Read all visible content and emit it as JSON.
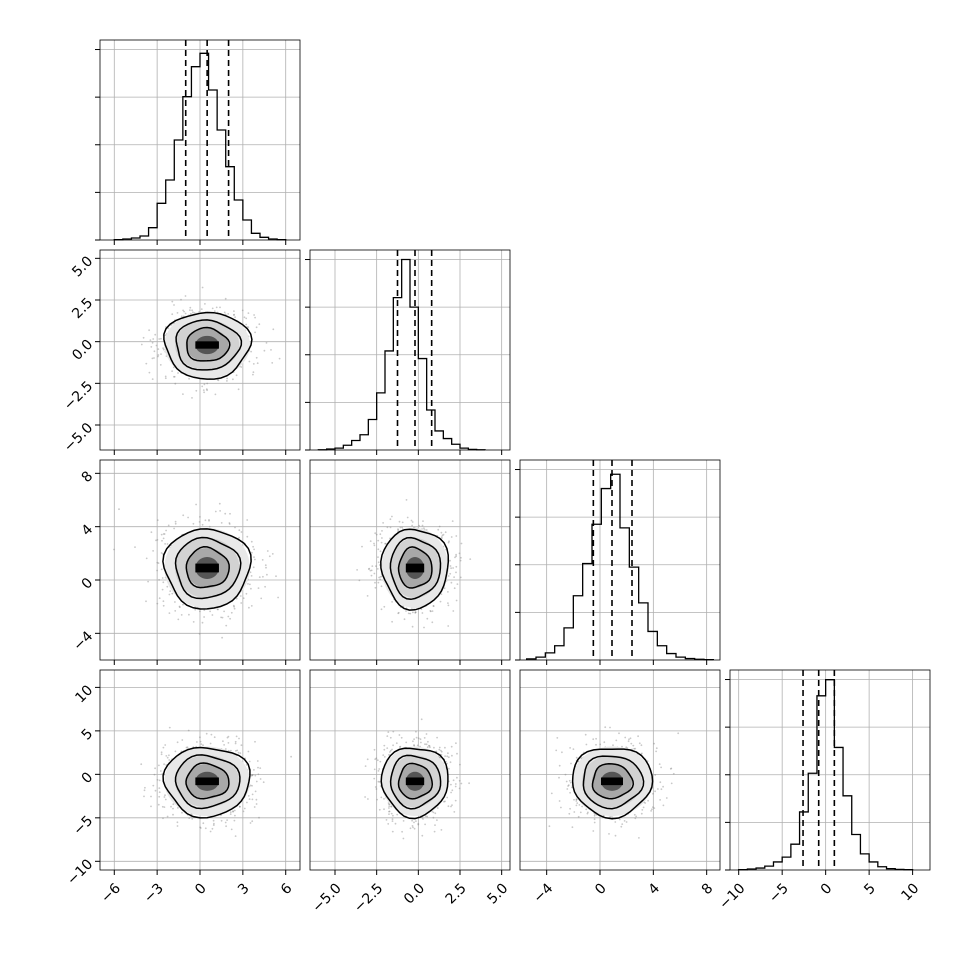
{
  "chart_data": {
    "type": "corner",
    "grid": true,
    "quantiles": [
      0.16,
      0.5,
      0.84
    ],
    "contour_levels_sigma": [
      0.5,
      1.0,
      1.5,
      2.0
    ],
    "colors": {
      "hist": "#000000",
      "points": "#888888",
      "grid": "#b0b0b0"
    },
    "params": [
      {
        "range": [
          -7,
          7
        ],
        "ticks": [
          -6,
          -3,
          0,
          3,
          6
        ],
        "tick_labels": [
          "−6",
          "−3",
          "0",
          "3",
          "6"
        ],
        "mean": 0.5,
        "std": 1.5,
        "q16": -1.0,
        "q50": 0.5,
        "q84": 2.0
      },
      {
        "range": [
          -6.5,
          5.5
        ],
        "ticks": [
          -5,
          -2.5,
          0,
          2.5,
          5
        ],
        "tick_labels": [
          "−5.0",
          "−2.5",
          "0.0",
          "2.5",
          "5.0"
        ],
        "mean": -0.2,
        "std": 1.0,
        "q16": -1.25,
        "q50": -0.2,
        "q84": 0.8
      },
      {
        "range": [
          -6,
          9
        ],
        "ticks": [
          -4,
          0,
          4,
          8
        ],
        "tick_labels": [
          "−4",
          "0",
          "4",
          "8"
        ],
        "mean": 0.9,
        "std": 1.5,
        "q16": -0.5,
        "q50": 0.9,
        "q84": 2.4
      },
      {
        "range": [
          -11,
          12
        ],
        "ticks": [
          -10,
          -5,
          0,
          5,
          10
        ],
        "tick_labels": [
          "−10",
          "−5",
          "0",
          "5",
          "10"
        ],
        "mean": -0.8,
        "std": 2.0,
        "q16": -2.6,
        "q50": -0.8,
        "q84": 1.0
      }
    ],
    "histograms": [
      {
        "param": 0,
        "bin_edges": [
          -6,
          -5.4,
          -4.8,
          -4.2,
          -3.6,
          -3,
          -2.4,
          -1.8,
          -1.2,
          -0.6,
          0,
          0.6,
          1.2,
          1.8,
          2.4,
          3,
          3.6,
          4.2,
          4.8,
          5.4,
          6
        ],
        "counts": [
          1,
          3,
          6,
          12,
          37,
          110,
          180,
          300,
          430,
          520,
          560,
          450,
          330,
          220,
          120,
          60,
          20,
          8,
          3,
          1
        ],
        "ymax": 600
      },
      {
        "param": 1,
        "bin_edges": [
          -6,
          -5.5,
          -5,
          -4.5,
          -4,
          -3.5,
          -3,
          -2.5,
          -2,
          -1.5,
          -1,
          -0.5,
          0,
          0.5,
          1,
          1.5,
          2,
          2.5,
          3,
          3.5,
          4
        ],
        "counts": [
          1,
          5,
          10,
          25,
          50,
          80,
          160,
          300,
          520,
          800,
          1000,
          750,
          480,
          210,
          100,
          60,
          30,
          10,
          3,
          1
        ],
        "ymax": 1050
      },
      {
        "param": 2,
        "bin_edges": [
          -5.5,
          -4.8,
          -4.1,
          -3.4,
          -2.7,
          -2,
          -1.3,
          -0.6,
          0.1,
          0.8,
          1.5,
          2.2,
          2.9,
          3.6,
          4.3,
          5,
          5.7,
          6.4,
          7.1,
          7.8,
          8.5
        ],
        "counts": [
          3,
          8,
          20,
          40,
          90,
          180,
          270,
          380,
          480,
          520,
          370,
          260,
          160,
          80,
          40,
          18,
          8,
          4,
          2,
          1
        ],
        "ymax": 560
      },
      {
        "param": 3,
        "bin_edges": [
          -10,
          -9,
          -8,
          -7,
          -6,
          -5,
          -4,
          -3,
          -2,
          -1,
          0,
          1,
          2,
          3,
          4,
          5,
          6,
          7,
          8,
          9,
          10
        ],
        "counts": [
          1,
          3,
          6,
          12,
          25,
          40,
          80,
          180,
          300,
          540,
          590,
          380,
          230,
          110,
          50,
          25,
          10,
          4,
          2,
          1
        ],
        "ymax": 620
      }
    ],
    "pairs": [
      {
        "x_param": 0,
        "y_param": 1
      },
      {
        "x_param": 0,
        "y_param": 2
      },
      {
        "x_param": 1,
        "y_param": 2
      },
      {
        "x_param": 0,
        "y_param": 3
      },
      {
        "x_param": 1,
        "y_param": 3
      },
      {
        "x_param": 2,
        "y_param": 3
      }
    ]
  }
}
